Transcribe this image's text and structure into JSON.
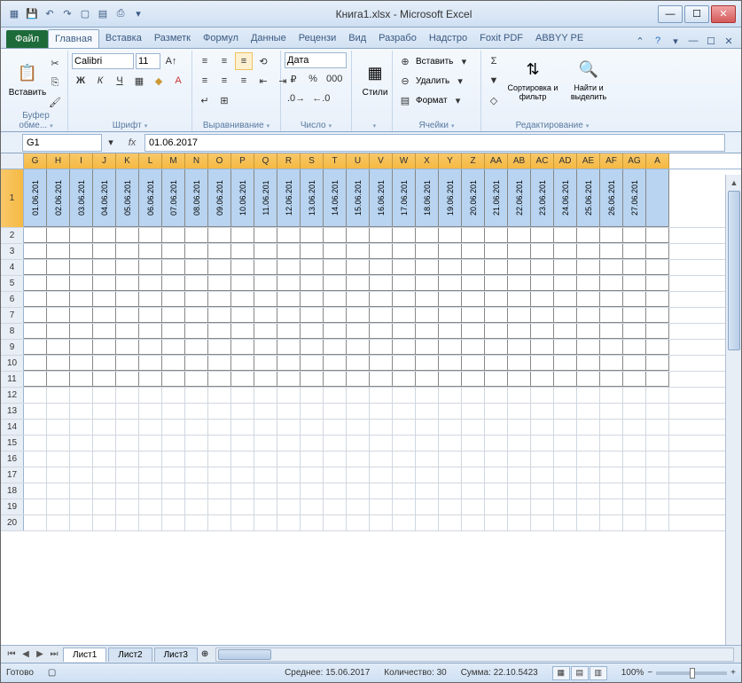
{
  "title": "Книга1.xlsx - Microsoft Excel",
  "qat_icons": [
    "excel-icon",
    "save-icon",
    "undo-icon",
    "redo-icon",
    "new-icon",
    "open-icon",
    "print-icon"
  ],
  "tabs": {
    "file": "Файл",
    "items": [
      "Главная",
      "Вставка",
      "Разметк",
      "Формул",
      "Данные",
      "Рецензи",
      "Вид",
      "Разрабо",
      "Надстро",
      "Foxit PDF",
      "ABBYY PE"
    ],
    "active_index": 0
  },
  "ribbon": {
    "clipboard": {
      "label": "Буфер обме...",
      "paste": "Вставить"
    },
    "font": {
      "label": "Шрифт",
      "name": "Calibri",
      "size": "11"
    },
    "align": {
      "label": "Выравнивание"
    },
    "number": {
      "label": "Число",
      "format": "Дата"
    },
    "styles": {
      "label": "·",
      "btn": "Стили"
    },
    "cells": {
      "label": "Ячейки",
      "insert": "Вставить",
      "delete": "Удалить",
      "format": "Формат"
    },
    "editing": {
      "label": "Редактирование",
      "sort": "Сортировка и фильтр",
      "find": "Найти и выделить"
    }
  },
  "namebox": "G1",
  "formula": "01.06.2017",
  "columns": [
    "G",
    "H",
    "I",
    "J",
    "K",
    "L",
    "M",
    "N",
    "O",
    "P",
    "Q",
    "R",
    "S",
    "T",
    "U",
    "V",
    "W",
    "X",
    "Y",
    "Z",
    "AA",
    "AB",
    "AC",
    "AD",
    "AE",
    "AF",
    "AG",
    "A"
  ],
  "dates": [
    "01.06.201",
    "02.06.201",
    "03.06.201",
    "04.06.201",
    "05.06.201",
    "06.06.201",
    "07.06.201",
    "08.06.201",
    "09.06.201",
    "10.06.201",
    "11.06.201",
    "12.06.201",
    "13.06.201",
    "14.06.201",
    "15.06.201",
    "16.06.201",
    "17.06.201",
    "18.06.201",
    "19.06.201",
    "20.06.201",
    "21.06.201",
    "22.06.201",
    "23.06.201",
    "24.06.201",
    "25.06.201",
    "26.06.201",
    "27.06.201",
    ""
  ],
  "row_numbers": [
    1,
    2,
    3,
    4,
    5,
    6,
    7,
    8,
    9,
    10,
    11,
    12,
    13,
    14,
    15,
    16,
    17,
    18,
    19,
    20
  ],
  "sheets": [
    "Лист1",
    "Лист2",
    "Лист3"
  ],
  "status": {
    "ready": "Готово",
    "avg_label": "Среднее:",
    "avg": "15.06.2017",
    "count_label": "Количество:",
    "count": "30",
    "sum_label": "Сумма:",
    "sum": "22.10.5423",
    "zoom": "100%"
  },
  "colors": {
    "header_selected": "#f5b942",
    "cell_selected": "#b8d4f0"
  }
}
